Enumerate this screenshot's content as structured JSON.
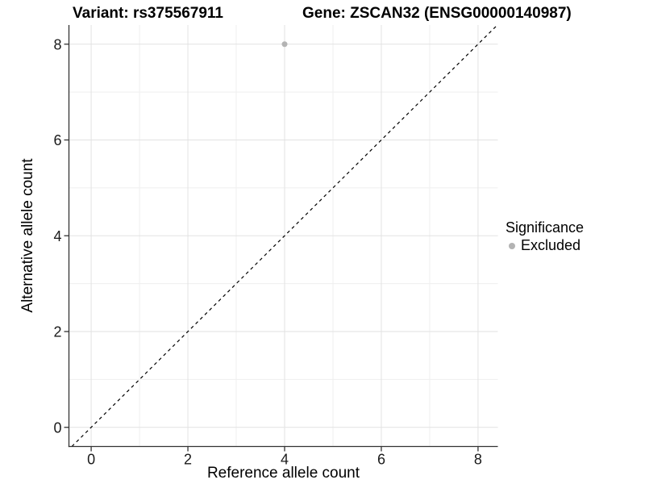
{
  "figure": {
    "title_left": "Variant: rs375567911",
    "title_right": "Gene: ZSCAN32 (ENSG00000140987)"
  },
  "chart_data": {
    "type": "scatter",
    "xlabel": "Reference allele count",
    "ylabel": "Alternative allele count",
    "xlim": [
      -0.46,
      8.41
    ],
    "ylim": [
      -0.4,
      8.4
    ],
    "xticks": [
      0,
      2,
      4,
      6,
      8
    ],
    "yticks": [
      0,
      2,
      4,
      6,
      8
    ],
    "xminor": [
      1,
      3,
      5,
      7
    ],
    "yminor": [
      1,
      3,
      5,
      7
    ],
    "grid": "major and minor gridlines on white panel",
    "reference_line": {
      "type": "identity y=x",
      "style": "dashed",
      "color": "#000000"
    },
    "series": [
      {
        "name": "Excluded",
        "color": "#b3b3b3",
        "points": [
          {
            "x": 4,
            "y": 8
          }
        ]
      }
    ],
    "legend": {
      "title": "Significance",
      "position": "right",
      "items": [
        {
          "label": "Excluded",
          "color": "#b3b3b3",
          "marker": "circle"
        }
      ]
    }
  },
  "colors": {
    "background": "#ffffff",
    "grid_major": "#e2e2e2",
    "grid_minor": "#efefef",
    "axis": "#333333",
    "text": "#1a1a1a",
    "title": "#000000"
  }
}
